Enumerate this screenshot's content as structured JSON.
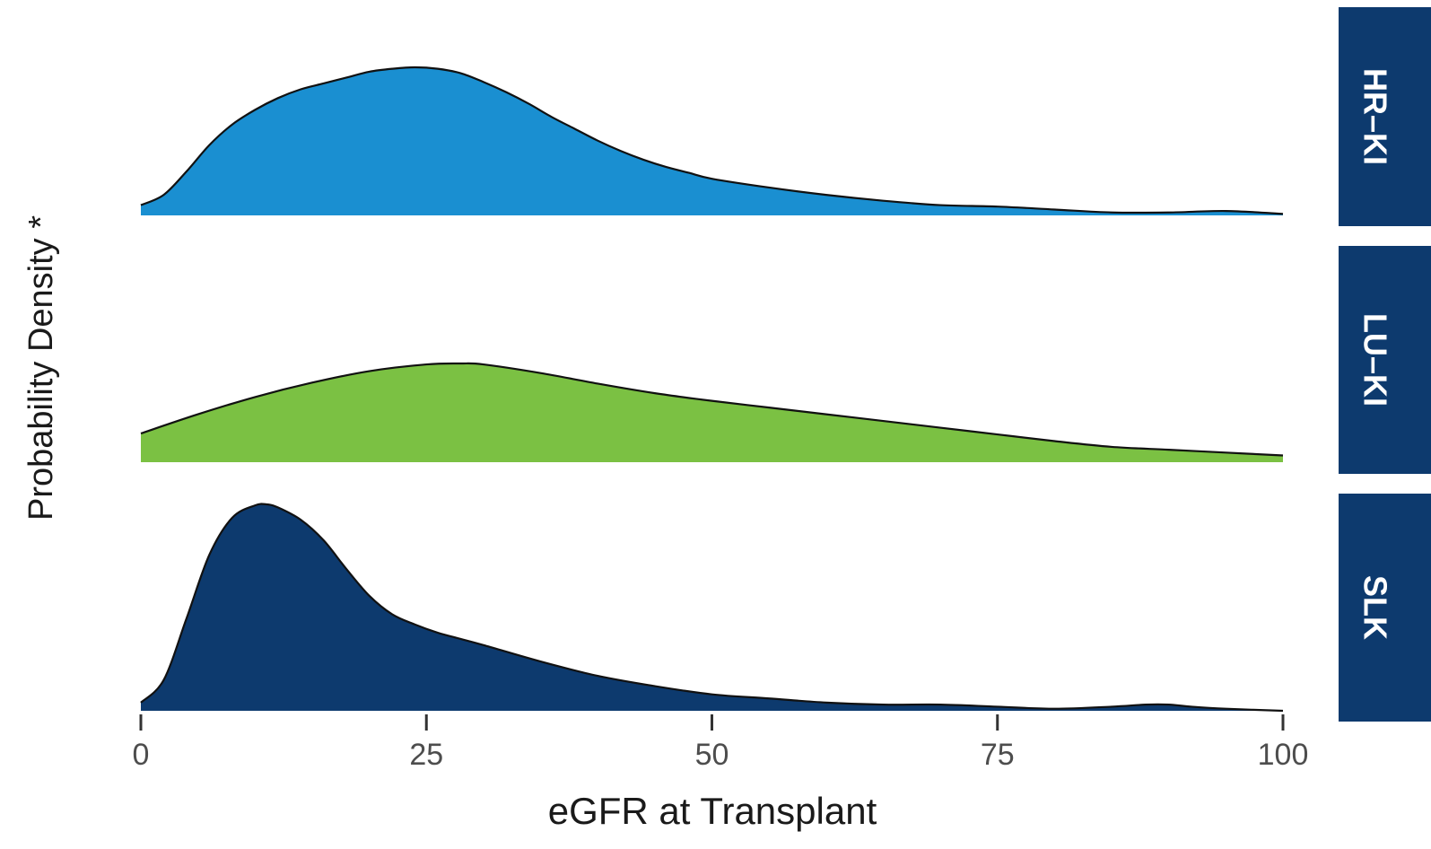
{
  "chart_data": {
    "type": "area",
    "xlabel": "eGFR at Transplant",
    "ylabel": "Probability Density *",
    "xlim": [
      0,
      100
    ],
    "x_ticks": [
      {
        "value": 0,
        "label": "0"
      },
      {
        "value": 25,
        "label": "25"
      },
      {
        "value": 50,
        "label": "50"
      },
      {
        "value": 75,
        "label": "75"
      },
      {
        "value": 100,
        "label": "100"
      }
    ],
    "grid": false,
    "legend": "none",
    "panels": "facet strips on right",
    "series": [
      {
        "name": "HR–KI",
        "color": "#1a8fd1",
        "strip_color": "#0d3a6e",
        "x": [
          0,
          2,
          4,
          6,
          8,
          10,
          12,
          14,
          16,
          18,
          20,
          22,
          24,
          26,
          28,
          30,
          32,
          34,
          36,
          38,
          40,
          42,
          44,
          46,
          48,
          50,
          55,
          60,
          65,
          70,
          75,
          80,
          85,
          90,
          95,
          100
        ],
        "values": [
          0.07,
          0.14,
          0.3,
          0.48,
          0.62,
          0.72,
          0.8,
          0.86,
          0.9,
          0.94,
          0.98,
          1.0,
          1.01,
          1.0,
          0.97,
          0.91,
          0.84,
          0.76,
          0.67,
          0.59,
          0.51,
          0.44,
          0.38,
          0.33,
          0.29,
          0.25,
          0.19,
          0.14,
          0.1,
          0.07,
          0.06,
          0.04,
          0.02,
          0.02,
          0.03,
          0.01
        ]
      },
      {
        "name": "LU–KI",
        "color": "#7bc143",
        "strip_color": "#0d3a6e",
        "x": [
          0,
          5,
          10,
          15,
          20,
          25,
          28,
          30,
          35,
          40,
          45,
          50,
          55,
          60,
          65,
          70,
          75,
          80,
          85,
          90,
          95,
          100
        ],
        "values": [
          0.3,
          0.5,
          0.68,
          0.83,
          0.95,
          1.02,
          1.03,
          1.02,
          0.93,
          0.82,
          0.72,
          0.64,
          0.57,
          0.5,
          0.43,
          0.36,
          0.29,
          0.22,
          0.16,
          0.13,
          0.1,
          0.07
        ]
      },
      {
        "name": "SLK",
        "color": "#0d3a6e",
        "strip_color": "#0d3a6e",
        "x": [
          0,
          2,
          4,
          6,
          8,
          10,
          11,
          12,
          14,
          16,
          18,
          20,
          22,
          24,
          26,
          28,
          30,
          35,
          40,
          45,
          50,
          55,
          60,
          65,
          70,
          75,
          80,
          85,
          88,
          90,
          92,
          95,
          100
        ],
        "values": [
          0.04,
          0.15,
          0.45,
          0.76,
          0.94,
          1.0,
          1.005,
          0.99,
          0.93,
          0.83,
          0.69,
          0.56,
          0.47,
          0.42,
          0.38,
          0.35,
          0.32,
          0.24,
          0.17,
          0.12,
          0.08,
          0.06,
          0.04,
          0.03,
          0.03,
          0.02,
          0.01,
          0.02,
          0.03,
          0.03,
          0.02,
          0.01,
          0.0
        ]
      }
    ]
  }
}
